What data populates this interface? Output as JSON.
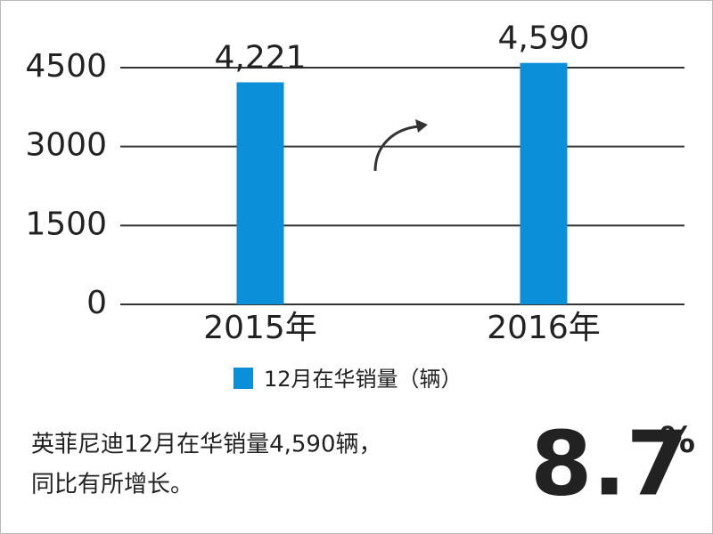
{
  "chart_data": {
    "type": "bar",
    "categories": [
      "2015年",
      "2016年"
    ],
    "series": [
      {
        "name": "12月在华销量（辆）",
        "color": "#0b8fd9",
        "values": [
          4221,
          4590
        ],
        "value_labels": [
          "4,221",
          "4,590"
        ]
      }
    ],
    "ylim": [
      0,
      4500
    ],
    "yticks": [
      0,
      1500,
      3000,
      4500
    ],
    "grid": true,
    "annotations": [
      "英菲尼迪12月在华销量4,590辆，",
      "同比有所增长。"
    ],
    "highlight": "8.7",
    "highlight_unit": "%"
  }
}
